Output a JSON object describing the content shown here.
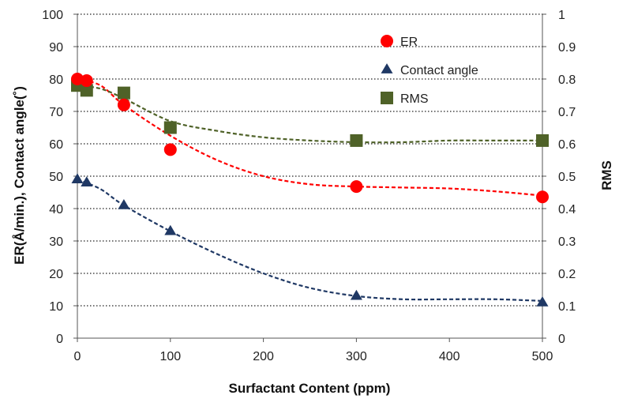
{
  "chart_data": {
    "type": "scatter",
    "xlabel": "Surfactant Content (ppm)",
    "ylabel_left": "ER(Å/min.), Contact angle(˚)",
    "ylabel_right": "RMS",
    "xlim": [
      0,
      500
    ],
    "ylim_left": [
      0,
      100
    ],
    "ylim_right": [
      0,
      1
    ],
    "x_ticks": [
      "0",
      "100",
      "200",
      "300",
      "400",
      "500"
    ],
    "y_ticks_left": [
      "0",
      "10",
      "20",
      "30",
      "40",
      "50",
      "60",
      "70",
      "80",
      "90",
      "100"
    ],
    "y_ticks_right": [
      "0",
      "0.1",
      "0.2",
      "0.3",
      "0.4",
      "0.5",
      "0.6",
      "0.7",
      "0.8",
      "0.9",
      "1"
    ],
    "grid": "horizontal dotted",
    "legend_position": "top-right",
    "series": [
      {
        "name": "ER",
        "axis": "left",
        "marker": "circle",
        "color": "#ff0000",
        "x": [
          0,
          10,
          50,
          100,
          300,
          500
        ],
        "y": [
          80,
          79.5,
          72,
          58.2,
          46.8,
          43.6
        ],
        "trend_x": [
          0,
          25,
          50,
          100,
          150,
          200,
          250,
          300,
          350,
          400,
          450,
          500
        ],
        "trend_y": [
          80,
          78,
          72,
          62.5,
          55,
          50,
          47.5,
          46.8,
          46.5,
          46.2,
          45.3,
          44
        ]
      },
      {
        "name": "Contact angle",
        "axis": "left",
        "marker": "triangle",
        "color": "#1f3864",
        "x": [
          0,
          10,
          50,
          100,
          300,
          500
        ],
        "y": [
          49,
          48,
          41,
          33,
          13,
          11
        ],
        "trend_x": [
          0,
          25,
          50,
          100,
          150,
          200,
          250,
          300,
          350,
          400,
          450,
          500
        ],
        "trend_y": [
          49,
          46,
          41,
          33,
          26,
          20,
          15.5,
          13,
          12,
          12,
          12,
          11.5
        ]
      },
      {
        "name": "RMS",
        "axis": "right",
        "marker": "square",
        "color": "#4f6228",
        "x": [
          0,
          10,
          50,
          100,
          300,
          500
        ],
        "y": [
          0.78,
          0.765,
          0.757,
          0.65,
          0.61,
          0.61
        ],
        "trend_x": [
          0,
          25,
          50,
          100,
          150,
          200,
          250,
          300,
          350,
          400,
          450,
          500
        ],
        "trend_y": [
          0.78,
          0.77,
          0.74,
          0.67,
          0.64,
          0.62,
          0.61,
          0.605,
          0.605,
          0.61,
          0.61,
          0.61
        ]
      }
    ]
  }
}
